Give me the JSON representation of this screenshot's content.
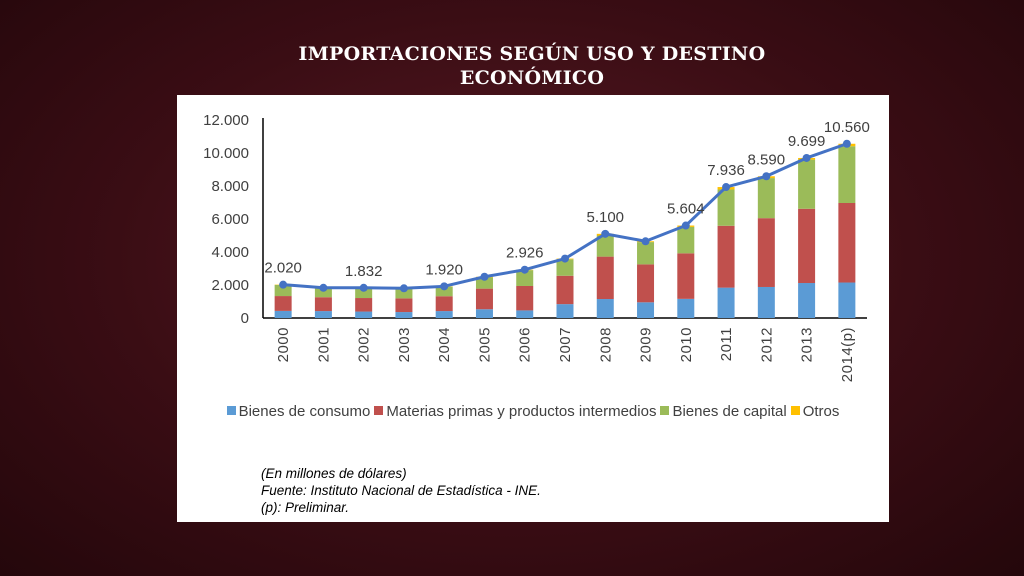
{
  "slide": {
    "title_line1": "IMPORTACIONES SEGÚN USO Y DESTINO",
    "title_line2": "ECONÓMICO"
  },
  "notes": {
    "line1": "(En millones de dólares)",
    "line2": "Fuente: Instituto Nacional de Estadística - INE.",
    "line3": "(p): Preliminar."
  },
  "colors": {
    "bienes_de_consumo": "#5b9bd5",
    "materias_primas": "#c0504d",
    "bienes_de_capital": "#9bbb59",
    "otros": "#ffc000",
    "total_line": "#4472c4",
    "axis": "#000000",
    "text": "#404040"
  },
  "chart_data": {
    "type": "bar",
    "stacked": true,
    "title": "",
    "xlabel": "",
    "ylabel": "",
    "ylim": [
      0,
      12000
    ],
    "yticks": [
      0,
      2000,
      4000,
      6000,
      8000,
      10000,
      12000
    ],
    "ytick_labels": [
      "0",
      "2.000",
      "4.000",
      "6.000",
      "8.000",
      "10.000",
      "12.000"
    ],
    "grid": false,
    "legend_position": "bottom",
    "categories": [
      "2000",
      "2001",
      "2002",
      "2003",
      "2004",
      "2005",
      "2006",
      "2007",
      "2008",
      "2009",
      "2010",
      "2011",
      "2012",
      "2013",
      "2014(p)"
    ],
    "series": [
      {
        "name": "Bienes de consumo",
        "color_key": "bienes_de_consumo",
        "values": [
          430,
          420,
          390,
          360,
          420,
          530,
          460,
          840,
          1150,
          950,
          1160,
          1840,
          1880,
          2120,
          2150
        ]
      },
      {
        "name": "Materias primas y productos intermedios",
        "color_key": "materias_primas",
        "values": [
          900,
          840,
          820,
          830,
          900,
          1250,
          1480,
          1720,
          2570,
          2300,
          2760,
          3750,
          4170,
          4500,
          4820
        ]
      },
      {
        "name": "Bienes de capital",
        "color_key": "bienes_de_capital",
        "values": [
          670,
          550,
          600,
          590,
          580,
          680,
          960,
          1000,
          1280,
          1350,
          1600,
          2200,
          2430,
          2980,
          3440
        ]
      },
      {
        "name": "Otros",
        "color_key": "otros",
        "values": [
          20,
          22,
          22,
          20,
          20,
          40,
          26,
          40,
          100,
          50,
          84,
          146,
          110,
          99,
          150
        ]
      }
    ],
    "total_line": {
      "values": [
        2020,
        1832,
        1832,
        1800,
        1920,
        2500,
        2926,
        3600,
        5100,
        4650,
        5604,
        7936,
        8590,
        9699,
        10560
      ],
      "data_labels": [
        {
          "index": 0,
          "text": "2.020"
        },
        {
          "index": 2,
          "text": "1.832"
        },
        {
          "index": 4,
          "text": "1.920"
        },
        {
          "index": 6,
          "text": "2.926"
        },
        {
          "index": 8,
          "text": "5.100"
        },
        {
          "index": 10,
          "text": "5.604"
        },
        {
          "index": 11,
          "text": "7.936"
        },
        {
          "index": 12,
          "text": "8.590"
        },
        {
          "index": 13,
          "text": "9.699"
        },
        {
          "index": 14,
          "text": "10.560"
        }
      ]
    }
  }
}
